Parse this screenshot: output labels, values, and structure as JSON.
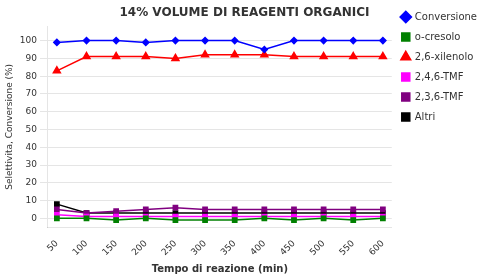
{
  "chart_data": {
    "type": "line",
    "title": "14% VOLUME DI REAGENTI ORGANICI",
    "x_label": "Tempo di reazione (min)",
    "y_label": "Selettivita, Conversione (%)",
    "x": [
      50,
      100,
      150,
      200,
      250,
      300,
      350,
      400,
      450,
      500,
      550,
      600
    ],
    "series": [
      {
        "name": "Conversione",
        "color": "#0000FF",
        "marker": "diamond",
        "values": [
          99,
          100,
          100,
          99,
          100,
          100,
          100,
          95,
          100,
          100,
          100,
          100
        ]
      },
      {
        "name": "o-cresolo",
        "color": "#008000",
        "marker": "square",
        "values": [
          0,
          0,
          -1,
          0,
          -1,
          -1,
          -1,
          0,
          -1,
          0,
          -1,
          0
        ]
      },
      {
        "name": "2,6-xilenolo",
        "color": "#FF0000",
        "marker": "triangle",
        "values": [
          83,
          91,
          91,
          91,
          90,
          92,
          92,
          92,
          91,
          91,
          91,
          91
        ]
      },
      {
        "name": "2,4,6-TMF",
        "color": "#FF00FF",
        "marker": "square",
        "values": [
          2,
          1,
          1,
          1,
          1,
          1,
          1,
          1,
          1,
          1,
          1,
          1
        ]
      },
      {
        "name": "2,3,6-TMF",
        "color": "#800080",
        "marker": "square",
        "values": [
          5,
          3,
          4,
          5,
          6,
          5,
          5,
          5,
          5,
          5,
          5,
          5
        ]
      },
      {
        "name": "Altri",
        "color": "#000000",
        "marker": "square",
        "values": [
          8,
          3,
          3,
          3,
          3,
          3,
          3,
          3,
          3,
          3,
          3,
          3
        ]
      }
    ],
    "xlim": [
      35,
      615
    ],
    "xticks": [
      50,
      100,
      150,
      200,
      250,
      300,
      350,
      400,
      450,
      500,
      550,
      600
    ],
    "ylim": [
      -5,
      108
    ],
    "yticks": [
      0,
      10,
      20,
      30,
      40,
      50,
      60,
      70,
      80,
      90,
      100
    ],
    "grid": "y",
    "legend": "right"
  }
}
